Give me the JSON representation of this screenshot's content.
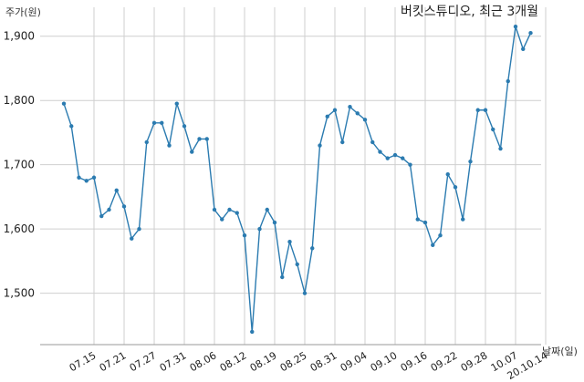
{
  "chart_data": {
    "type": "line",
    "title": "버킷스튜디오, 최근 3개월",
    "ylabel": "주가(원)",
    "xlabel": "날짜(일)",
    "ylim": [
      1420,
      1945
    ],
    "yticks": [
      1500,
      1600,
      1700,
      1800,
      1900
    ],
    "ytick_labels": [
      "1,500",
      "1,600",
      "1,700",
      "1,800",
      "1,900"
    ],
    "xtick_labels": [
      "07.15",
      "07.21",
      "07.27",
      "07.31",
      "08.06",
      "08.12",
      "08.19",
      "08.25",
      "08.31",
      "09.04",
      "09.10",
      "09.16",
      "09.22",
      "09.28",
      "10.07",
      "20.10.14"
    ],
    "xtick_index": [
      4,
      8,
      12,
      16,
      20,
      24,
      28,
      32,
      36,
      40,
      44,
      48,
      52,
      56,
      60,
      64
    ],
    "grid": true,
    "color": "#2b7bb0",
    "series": [
      {
        "values": [
          1795,
          1760,
          1680,
          1675,
          1680,
          1620,
          1630,
          1660,
          1635,
          1585,
          1600,
          1735,
          1765,
          1765,
          1730,
          1795,
          1760,
          1720,
          1740,
          1740,
          1630,
          1615,
          1630,
          1625,
          1590,
          1440,
          1600,
          1630,
          1610,
          1525,
          1580,
          1545,
          1500,
          1570,
          1730,
          1775,
          1785,
          1735,
          1790,
          1780,
          1770,
          1735,
          1720,
          1710,
          1715,
          1710,
          1700,
          1615,
          1610,
          1575,
          1590,
          1685,
          1665,
          1615,
          1705,
          1785,
          1785,
          1755,
          1725,
          1830,
          1915,
          1880,
          1905
        ]
      }
    ]
  }
}
